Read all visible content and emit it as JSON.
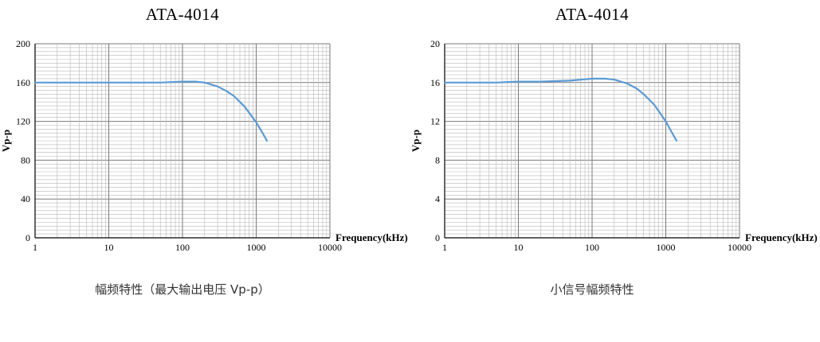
{
  "page": {
    "background": "#ffffff"
  },
  "chart_data": [
    {
      "type": "line",
      "title": "ATA-4014",
      "caption": "幅频特性（最大输出电压 Vp-p）",
      "xlabel": "Frequency(kHz)",
      "ylabel": "Vp-p",
      "x_scale": "log",
      "xlim": [
        1,
        10000
      ],
      "x_ticks": [
        1,
        10,
        100,
        1000,
        10000
      ],
      "ylim": [
        0,
        200
      ],
      "y_tick_step": 40,
      "y_minor_per_major": 10,
      "grid": true,
      "line_color": "#5b9bd5",
      "series": [
        {
          "x": [
            1,
            2,
            5,
            10,
            20,
            50,
            100,
            150,
            200,
            300,
            400,
            500,
            700,
            1000,
            1200,
            1400
          ],
          "y": [
            160,
            160,
            160,
            160,
            160,
            160,
            161,
            161,
            160,
            156,
            151,
            146,
            135,
            119,
            109,
            100
          ]
        }
      ]
    },
    {
      "type": "line",
      "title": "ATA-4014",
      "caption": "小信号幅频特性",
      "xlabel": "Frequency(kHz)",
      "ylabel": "Vp-p",
      "x_scale": "log",
      "xlim": [
        1,
        10000
      ],
      "x_ticks": [
        1,
        10,
        100,
        1000,
        10000
      ],
      "ylim": [
        0,
        20
      ],
      "y_tick_step": 4,
      "y_minor_per_major": 10,
      "grid": true,
      "line_color": "#5b9bd5",
      "series": [
        {
          "x": [
            1,
            2,
            5,
            10,
            20,
            50,
            100,
            150,
            200,
            300,
            400,
            500,
            700,
            1000,
            1200,
            1400
          ],
          "y": [
            16,
            16,
            16,
            16.1,
            16.1,
            16.2,
            16.4,
            16.4,
            16.3,
            15.9,
            15.4,
            14.8,
            13.7,
            12,
            10.9,
            10
          ]
        }
      ]
    }
  ]
}
